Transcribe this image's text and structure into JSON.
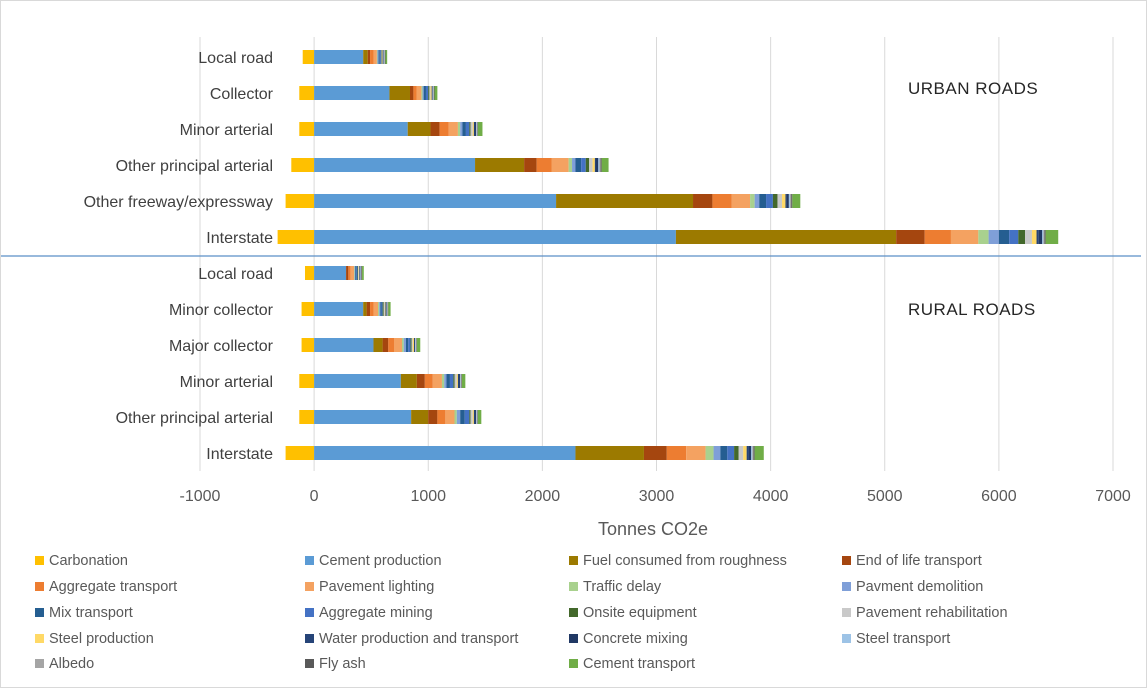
{
  "chart_data": {
    "type": "bar",
    "orientation": "horizontal",
    "stacked": true,
    "xlabel": "Tonnes CO2e",
    "xlim": [
      -1000,
      7000
    ],
    "xticks": [
      -1000,
      0,
      1000,
      2000,
      3000,
      4000,
      5000,
      6000,
      7000
    ],
    "grid": "vertical",
    "legend_position": "bottom",
    "groups": [
      {
        "label": "URBAN ROADS",
        "categories": [
          "Local road",
          "Collector",
          "Minor arterial",
          "Other principal arterial",
          "Other freeway/expressway",
          "Interstate"
        ]
      },
      {
        "label": "RURAL ROADS",
        "categories": [
          "Local road",
          "Minor collector",
          "Major collector",
          "Minor arterial",
          "Other principal arterial",
          "Interstate"
        ]
      }
    ],
    "series": [
      {
        "name": "Carbonation",
        "color": "#FFC000",
        "values": [
          [
            -100,
            -130,
            -130,
            -200,
            -250,
            -320
          ],
          [
            -80,
            -110,
            -110,
            -130,
            -130,
            -250
          ]
        ]
      },
      {
        "name": "Cement production",
        "color": "#5B9BD5",
        "values": [
          [
            430,
            660,
            820,
            1410,
            2120,
            3170
          ],
          [
            280,
            430,
            520,
            760,
            850,
            2290
          ]
        ]
      },
      {
        "name": "Fuel consumed from roughness",
        "color": "#9C7A00",
        "values": [
          [
            40,
            180,
            200,
            430,
            1200,
            1930
          ],
          [
            0,
            30,
            80,
            140,
            150,
            600
          ]
        ]
      },
      {
        "name": "End of life transport",
        "color": "#A5460F",
        "values": [
          [
            20,
            30,
            80,
            110,
            170,
            250
          ],
          [
            20,
            30,
            50,
            70,
            80,
            200
          ]
        ]
      },
      {
        "name": "Aggregate transport",
        "color": "#ED7D31",
        "values": [
          [
            30,
            30,
            80,
            130,
            170,
            230
          ],
          [
            20,
            30,
            50,
            70,
            70,
            170
          ]
        ]
      },
      {
        "name": "Pavement lighting",
        "color": "#F4A261",
        "values": [
          [
            30,
            40,
            80,
            150,
            160,
            240
          ],
          [
            30,
            40,
            70,
            80,
            80,
            170
          ]
        ]
      },
      {
        "name": "Traffic delay",
        "color": "#A9D18E",
        "values": [
          [
            5,
            10,
            20,
            30,
            40,
            90
          ],
          [
            5,
            10,
            15,
            20,
            20,
            70
          ]
        ]
      },
      {
        "name": "Pavment demolition",
        "color": "#7F9FD8",
        "values": [
          [
            10,
            10,
            20,
            30,
            40,
            90
          ],
          [
            5,
            10,
            20,
            20,
            30,
            60
          ]
        ]
      },
      {
        "name": "Mix transport",
        "color": "#255E91",
        "values": [
          [
            10,
            20,
            30,
            50,
            60,
            90
          ],
          [
            10,
            10,
            20,
            30,
            40,
            60
          ]
        ]
      },
      {
        "name": "Aggregate mining",
        "color": "#4472C4",
        "values": [
          [
            10,
            20,
            30,
            40,
            60,
            80
          ],
          [
            10,
            10,
            20,
            30,
            40,
            60
          ]
        ]
      },
      {
        "name": "Onsite equipment",
        "color": "#43682B",
        "values": [
          [
            5,
            10,
            10,
            30,
            40,
            60
          ],
          [
            5,
            10,
            10,
            10,
            10,
            40
          ]
        ]
      },
      {
        "name": "Pavement rehabilitation",
        "color": "#C9C9C9",
        "values": [
          [
            5,
            10,
            20,
            30,
            40,
            60
          ],
          [
            5,
            10,
            10,
            20,
            20,
            40
          ]
        ]
      },
      {
        "name": "Steel production",
        "color": "#FFD966",
        "values": [
          [
            5,
            10,
            10,
            20,
            30,
            40
          ],
          [
            5,
            5,
            10,
            10,
            10,
            30
          ]
        ]
      },
      {
        "name": "Water production and transport",
        "color": "#264478",
        "values": [
          [
            5,
            5,
            10,
            10,
            10,
            20
          ],
          [
            5,
            5,
            5,
            10,
            10,
            20
          ]
        ]
      },
      {
        "name": "Concrete mixing",
        "color": "#203864",
        "values": [
          [
            5,
            5,
            10,
            20,
            20,
            30
          ],
          [
            5,
            5,
            5,
            10,
            10,
            20
          ]
        ]
      },
      {
        "name": "Steel transport",
        "color": "#9DC3E6",
        "values": [
          [
            5,
            5,
            5,
            10,
            10,
            10
          ],
          [
            5,
            5,
            5,
            5,
            5,
            10
          ]
        ]
      },
      {
        "name": "Albedo",
        "color": "#A5A5A5",
        "values": [
          [
            5,
            5,
            5,
            10,
            10,
            10
          ],
          [
            5,
            5,
            5,
            5,
            5,
            10
          ]
        ]
      },
      {
        "name": "Fly ash",
        "color": "#595959",
        "values": [
          [
            5,
            5,
            5,
            10,
            10,
            10
          ],
          [
            5,
            5,
            5,
            5,
            5,
            10
          ]
        ]
      },
      {
        "name": "Cement transport",
        "color": "#70AD47",
        "values": [
          [
            15,
            25,
            40,
            60,
            70,
            110
          ],
          [
            15,
            20,
            30,
            30,
            30,
            80
          ]
        ]
      }
    ]
  }
}
